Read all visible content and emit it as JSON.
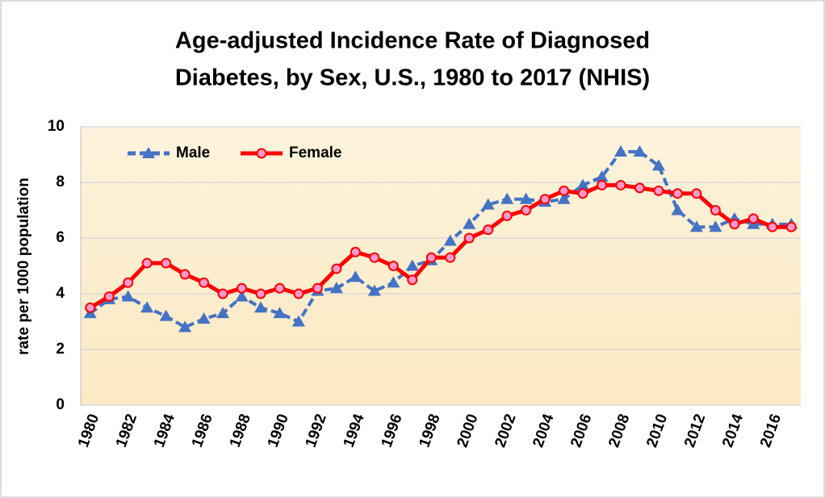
{
  "chart_data": {
    "type": "line",
    "title": [
      "Age-adjusted Incidence Rate of Diagnosed",
      "Diabetes, by Sex, U.S., 1980 to 2017 (NHIS)"
    ],
    "y_label": "rate per 1000 population",
    "categories": [
      "1980",
      null,
      "1982",
      null,
      "1984",
      null,
      "1986",
      null,
      "1988",
      null,
      "1990",
      null,
      "1992",
      null,
      "1994",
      null,
      "1996",
      null,
      "1998",
      null,
      "2000",
      null,
      "2002",
      null,
      "2004",
      null,
      "2006",
      null,
      "2008",
      null,
      "2010",
      null,
      "2012",
      null,
      "2014",
      null,
      "2016",
      null
    ],
    "series": [
      {
        "name": "Male",
        "color": "#4472c4",
        "marker": "triangle",
        "dashed": true,
        "values": [
          3.3,
          3.8,
          3.9,
          3.5,
          3.2,
          2.8,
          3.1,
          3.3,
          3.9,
          3.5,
          3.3,
          3.0,
          4.1,
          4.2,
          4.6,
          4.1,
          4.4,
          5.0,
          5.2,
          5.9,
          6.5,
          7.2,
          7.4,
          7.4,
          7.3,
          7.4,
          7.9,
          8.2,
          9.1,
          9.1,
          8.6,
          7.0,
          6.4,
          6.4,
          6.7,
          6.5,
          6.5,
          6.5
        ]
      },
      {
        "name": "Female",
        "color": "#ff0000",
        "marker": "circle",
        "dashed": false,
        "values": [
          3.5,
          3.9,
          4.4,
          5.1,
          5.1,
          4.7,
          4.4,
          4.0,
          4.2,
          4.0,
          4.2,
          4.0,
          4.2,
          4.9,
          5.5,
          5.3,
          5.0,
          4.5,
          5.3,
          5.3,
          6.0,
          6.3,
          6.8,
          7.0,
          7.4,
          7.7,
          7.6,
          7.9,
          7.9,
          7.8,
          7.7,
          7.6,
          7.6,
          7.0,
          6.5,
          6.7,
          6.4,
          6.4
        ]
      }
    ],
    "ylim": [
      0,
      10
    ],
    "yticks": [
      0,
      2,
      4,
      6,
      8,
      10
    ],
    "grid": true,
    "legend": "top-left"
  }
}
